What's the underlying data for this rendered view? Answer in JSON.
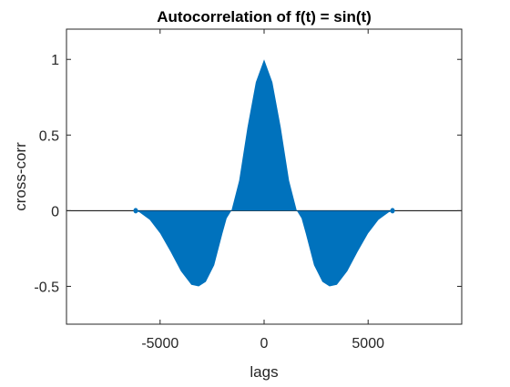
{
  "chart_data": {
    "type": "line",
    "title": "Autocorrelation of f(t) = sin(t)",
    "xlabel": "lags",
    "ylabel": "cross-corr",
    "xlim": [
      -9500,
      9500
    ],
    "ylim": [
      -0.75,
      1.2
    ],
    "xticks": [
      -5000,
      0,
      5000
    ],
    "xtick_labels": [
      "-5000",
      "0",
      "5000"
    ],
    "yticks": [
      -0.5,
      0,
      0.5,
      1
    ],
    "ytick_labels": [
      "-0.5",
      "0",
      "0.5",
      "1"
    ],
    "grid": false,
    "legend": "none",
    "color": "#0072BD",
    "lag_range": [
      -6283,
      6283
    ],
    "series": [
      {
        "envelope_x": [
          -6283,
          -6000,
          -5500,
          -5000,
          -4500,
          -4000,
          -3500,
          -3142,
          -2800,
          -2400,
          -2000,
          -1800,
          -1571,
          -1200,
          -800,
          -400,
          0,
          400,
          800,
          1200,
          1571,
          1800,
          2000,
          2400,
          2800,
          3142,
          3500,
          4000,
          4500,
          5000,
          5500,
          6000,
          6283
        ],
        "envelope_y": [
          0,
          -0.01,
          -0.06,
          -0.15,
          -0.27,
          -0.4,
          -0.49,
          -0.5,
          -0.47,
          -0.36,
          -0.15,
          -0.05,
          0.0,
          0.2,
          0.55,
          0.85,
          1.0,
          0.85,
          0.55,
          0.2,
          0.0,
          -0.05,
          -0.15,
          -0.36,
          -0.47,
          -0.5,
          -0.49,
          -0.4,
          -0.27,
          -0.15,
          -0.06,
          -0.01,
          0
        ]
      }
    ]
  }
}
